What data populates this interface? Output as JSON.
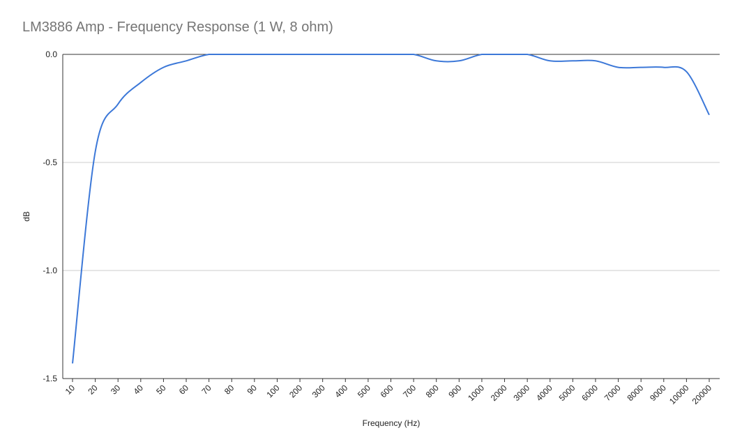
{
  "chart_data": {
    "type": "line",
    "title": "LM3886 Amp - Frequency Response (1 W, 8 ohm)",
    "xlabel": "Frequency (Hz)",
    "ylabel": "dB",
    "ylim": [
      -1.5,
      0.0
    ],
    "yticks": [
      "0.0",
      "-0.5",
      "-1.0",
      "-1.5"
    ],
    "ytick_values": [
      0.0,
      -0.5,
      -1.0,
      -1.5
    ],
    "grid": true,
    "legend": "none",
    "categories": [
      "10",
      "20",
      "30",
      "40",
      "50",
      "60",
      "70",
      "80",
      "90",
      "100",
      "200",
      "300",
      "400",
      "500",
      "600",
      "700",
      "800",
      "900",
      "1000",
      "2000",
      "3000",
      "4000",
      "5000",
      "6000",
      "7000",
      "8000",
      "9000",
      "10000",
      "20000"
    ],
    "series": [
      {
        "color": "#3c78d8",
        "values": [
          -1.43,
          -0.45,
          -0.23,
          -0.13,
          -0.06,
          -0.03,
          0.0,
          0.0,
          0.0,
          0.0,
          0.0,
          0.0,
          0.0,
          0.0,
          0.0,
          0.0,
          -0.03,
          -0.03,
          0.0,
          0.0,
          0.0,
          -0.03,
          -0.03,
          -0.03,
          -0.06,
          -0.06,
          -0.06,
          -0.08,
          -0.28
        ]
      }
    ]
  }
}
